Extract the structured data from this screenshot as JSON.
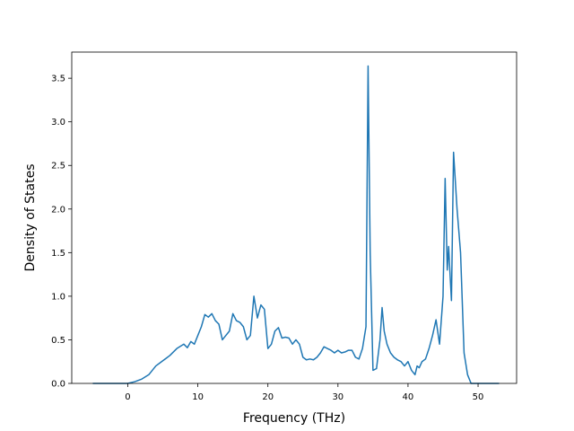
{
  "chart_data": {
    "type": "line",
    "title": "",
    "xlabel": "Frequency (THz)",
    "ylabel": "Density of States",
    "xlim": [
      -8,
      55.5
    ],
    "ylim": [
      0,
      3.8
    ],
    "xticks": [
      0,
      10,
      20,
      30,
      40,
      50
    ],
    "yticks": [
      0.0,
      0.5,
      1.0,
      1.5,
      2.0,
      2.5,
      3.0,
      3.5
    ],
    "xtick_labels": [
      "0",
      "10",
      "20",
      "30",
      "40",
      "50"
    ],
    "ytick_labels": [
      "0.0",
      "0.5",
      "1.0",
      "1.5",
      "2.0",
      "2.5",
      "3.0",
      "3.5"
    ],
    "grid": false,
    "legend": "none",
    "series": [
      {
        "color": "#1f77b4",
        "x": [
          -5,
          -3,
          -1,
          0,
          1,
          2,
          3,
          4,
          5,
          5.5,
          6,
          7,
          8,
          8.5,
          9,
          9.5,
          10,
          10.5,
          11,
          11.5,
          12,
          12.5,
          13,
          13.5,
          14,
          14.5,
          15,
          15.5,
          16,
          16.5,
          17,
          17.5,
          18,
          18.5,
          19,
          19.5,
          20,
          20.5,
          21,
          21.5,
          22,
          22.5,
          23,
          23.5,
          24,
          24.5,
          25,
          25.5,
          26,
          26.5,
          27,
          27.5,
          28,
          28.5,
          29,
          29.5,
          30,
          30.5,
          31,
          31.5,
          32,
          32.5,
          33,
          33.5,
          34,
          34.3,
          34.6,
          35,
          35.5,
          36,
          36.3,
          36.6,
          37,
          37.5,
          38,
          38.5,
          39,
          39.5,
          40,
          40.5,
          41,
          41.3,
          41.6,
          42,
          42.5,
          43,
          43.5,
          44,
          44.5,
          45,
          45.3,
          45.6,
          45.8,
          46,
          46.2,
          46.5,
          47,
          47.5,
          48,
          48.5,
          49,
          50,
          52,
          53
        ],
        "y": [
          0.0,
          0.0,
          0.0,
          0.0,
          0.02,
          0.05,
          0.1,
          0.2,
          0.26,
          0.29,
          0.32,
          0.4,
          0.45,
          0.41,
          0.48,
          0.45,
          0.55,
          0.65,
          0.79,
          0.76,
          0.8,
          0.72,
          0.68,
          0.5,
          0.55,
          0.6,
          0.8,
          0.72,
          0.7,
          0.65,
          0.5,
          0.55,
          1.0,
          0.75,
          0.9,
          0.85,
          0.4,
          0.45,
          0.6,
          0.64,
          0.52,
          0.53,
          0.52,
          0.45,
          0.5,
          0.45,
          0.3,
          0.27,
          0.28,
          0.27,
          0.3,
          0.35,
          0.42,
          0.4,
          0.38,
          0.35,
          0.38,
          0.35,
          0.36,
          0.38,
          0.38,
          0.3,
          0.28,
          0.4,
          0.65,
          3.64,
          1.5,
          0.15,
          0.17,
          0.5,
          0.87,
          0.6,
          0.45,
          0.35,
          0.3,
          0.27,
          0.25,
          0.2,
          0.25,
          0.15,
          0.1,
          0.2,
          0.18,
          0.25,
          0.28,
          0.4,
          0.55,
          0.73,
          0.45,
          1.0,
          2.35,
          1.3,
          1.57,
          1.25,
          0.95,
          2.65,
          2.0,
          1.5,
          0.35,
          0.1,
          0.0,
          0.0,
          0.0,
          0.0
        ]
      }
    ]
  }
}
